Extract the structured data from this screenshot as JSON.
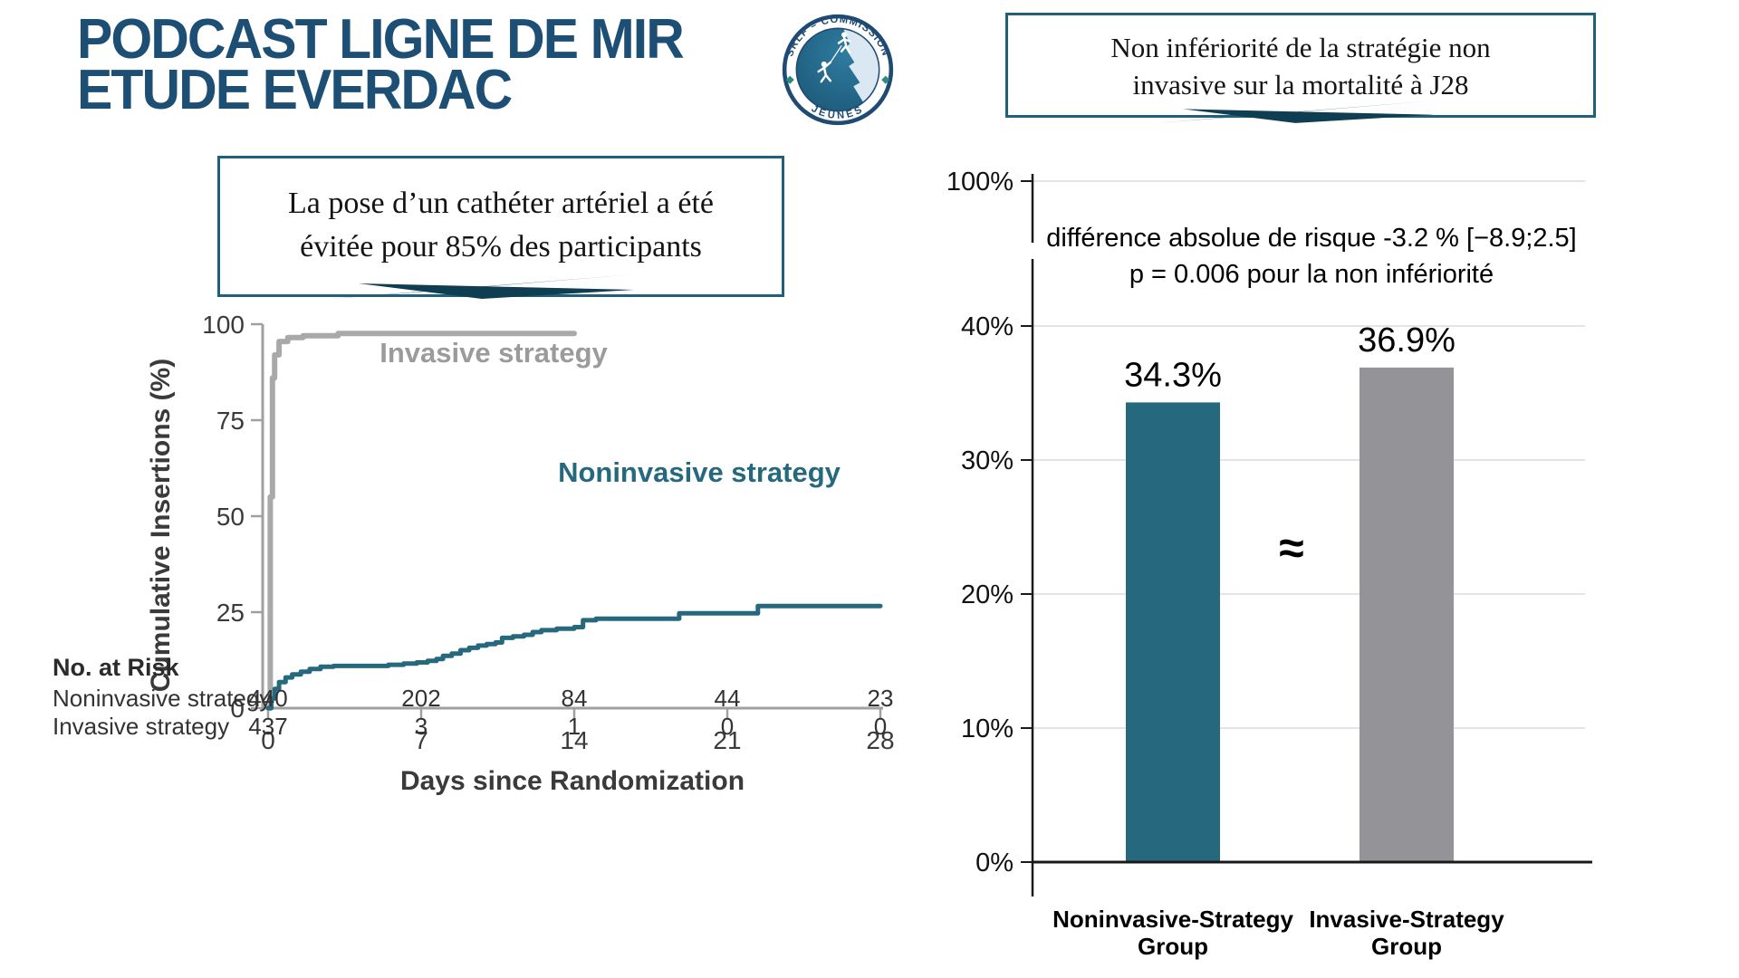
{
  "header": {
    "title_line1": "PODCAST LIGNE DE MIR",
    "title_line2": "ETUDE  EVERDAC"
  },
  "logo": {
    "arc_text_top": "SRLF – COMMISSION",
    "arc_text_bottom": "JEUNES"
  },
  "callouts": {
    "left": {
      "line1": "La pose d’un cathéter artériel a été",
      "line2": "évitée pour 85% des participants"
    },
    "right": {
      "line1": "Non infériorité de la stratégie non",
      "line2": "invasive sur la mortalité à J28"
    }
  },
  "colors": {
    "navy_title": "#1d4e74",
    "box_border_teal": "#20607a",
    "teal_series": "#26697f",
    "gray_line": "#a9a9a9",
    "gray_bar": "#939398",
    "gridline": "#dcdcdc",
    "chart_text": "#3a3a3a"
  },
  "chart_data": [
    {
      "type": "line",
      "title": "",
      "xlabel": "Days since Randomization",
      "ylabel": "Cumulative Insertions (%)",
      "xlim": [
        0,
        28
      ],
      "ylim": [
        0,
        100
      ],
      "xticks": [
        0,
        7,
        14,
        21,
        28
      ],
      "yticks": [
        100,
        75,
        50,
        25,
        0
      ],
      "grid": false,
      "legend_position": "inline-labels",
      "series": [
        {
          "name": "Invasive strategy",
          "color": "#a9a9a9",
          "style": "step",
          "points": [
            [
              0,
              0
            ],
            [
              0.1,
              55
            ],
            [
              0.2,
              86
            ],
            [
              0.3,
              92
            ],
            [
              0.5,
              95.5
            ],
            [
              0.9,
              96.5
            ],
            [
              1.6,
              97
            ],
            [
              3.2,
              97.6
            ],
            [
              14,
              97.6
            ]
          ]
        },
        {
          "name": "Noninvasive strategy",
          "color": "#26697f",
          "style": "step",
          "points": [
            [
              0,
              0
            ],
            [
              0.15,
              2.5
            ],
            [
              0.3,
              5
            ],
            [
              0.5,
              6.8
            ],
            [
              0.8,
              8
            ],
            [
              1.1,
              8.8
            ],
            [
              1.5,
              9.5
            ],
            [
              1.9,
              10.2
            ],
            [
              2.4,
              10.8
            ],
            [
              3,
              11
            ],
            [
              5,
              11
            ],
            [
              5.5,
              11.3
            ],
            [
              6.2,
              11.6
            ],
            [
              6.8,
              11.9
            ],
            [
              7.3,
              12.3
            ],
            [
              7.7,
              12.8
            ],
            [
              8,
              13.6
            ],
            [
              8.4,
              14.2
            ],
            [
              8.8,
              15.1
            ],
            [
              9.2,
              15.7
            ],
            [
              9.6,
              16.3
            ],
            [
              10,
              16.7
            ],
            [
              10.4,
              17.1
            ],
            [
              10.7,
              18.3
            ],
            [
              11.2,
              18.7
            ],
            [
              11.7,
              19.1
            ],
            [
              12.1,
              19.8
            ],
            [
              12.5,
              20.3
            ],
            [
              13.2,
              20.7
            ],
            [
              14,
              21.1
            ],
            [
              14.4,
              22.9
            ],
            [
              15,
              23.3
            ],
            [
              18.5,
              23.3
            ],
            [
              18.8,
              24.7
            ],
            [
              22.1,
              24.7
            ],
            [
              22.4,
              26.6
            ],
            [
              28,
              26.6
            ]
          ]
        }
      ],
      "risk_table": {
        "title": "No. at Risk",
        "rows": [
          {
            "label": "Noninvasive strategy",
            "values": [
              "440",
              "202",
              "84",
              "44",
              "23"
            ]
          },
          {
            "label": "Invasive strategy",
            "values": [
              "437",
              "3",
              "1",
              "0",
              "0"
            ]
          }
        ]
      }
    },
    {
      "type": "bar",
      "categories": [
        "Noninvasive-Strategy Group",
        "Invasive-Strategy Group"
      ],
      "categories_lines": [
        [
          "Noninvasive-Strategy",
          "Group"
        ],
        [
          "Invasive-Strategy",
          "Group"
        ]
      ],
      "values": [
        34.3,
        36.9
      ],
      "value_labels": [
        "34.3%",
        "36.9%"
      ],
      "bar_colors": [
        "#26697f",
        "#939398"
      ],
      "ytick_labels_top_to_bottom": [
        "100%",
        "40%",
        "30%",
        "20%",
        "10%",
        "0%"
      ],
      "axis_break": true,
      "ylim_note": "0-40% linear, axis break, then 100%",
      "annotations": {
        "line1": "différence absolue de risque -3.2 % [−8.9;2.5]",
        "line2": "p = 0.006 pour la non infériorité",
        "approx_symbol": "≈"
      }
    }
  ]
}
